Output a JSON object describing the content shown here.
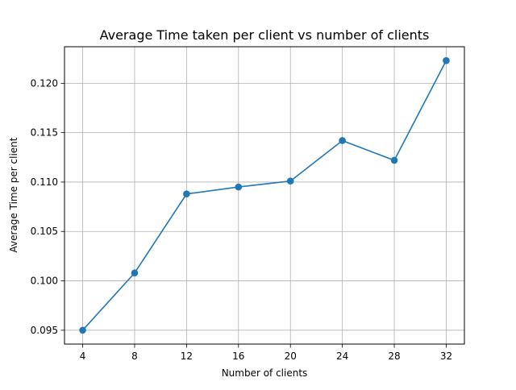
{
  "chart_data": {
    "type": "line",
    "title": "Average Time taken per client vs number of clients",
    "xlabel": "Number of clients",
    "ylabel": "Average Time per client",
    "x": [
      4,
      8,
      12,
      16,
      20,
      24,
      28,
      32
    ],
    "series": [
      {
        "values": [
          0.095,
          0.1008,
          0.1088,
          0.1095,
          0.1101,
          0.1142,
          0.1122,
          0.1223
        ],
        "color": "#1f77b4",
        "marker": "circle"
      }
    ],
    "xticks": [
      4,
      8,
      12,
      16,
      20,
      24,
      28,
      32
    ],
    "xtick_labels": [
      "4",
      "8",
      "12",
      "16",
      "20",
      "24",
      "28",
      "32"
    ],
    "yticks": [
      0.095,
      0.1,
      0.105,
      0.11,
      0.115,
      0.12
    ],
    "ytick_labels": [
      "0.095",
      "0.100",
      "0.105",
      "0.110",
      "0.115",
      "0.120"
    ],
    "xlim": [
      2.6,
      33.4
    ],
    "ylim": [
      0.0936,
      0.1237
    ],
    "grid": true,
    "legend": "none"
  }
}
